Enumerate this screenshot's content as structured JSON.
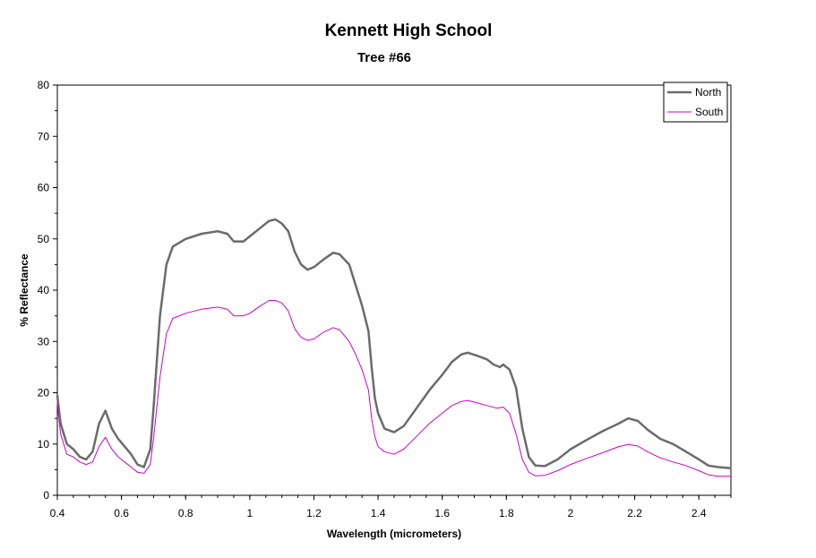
{
  "chart_data": {
    "type": "line",
    "title": "Kennett High School",
    "subtitle": "Tree #66",
    "xlabel": "Wavelength (micrometers)",
    "ylabel": "% Reflectance",
    "xlim": [
      0.4,
      2.5
    ],
    "ylim": [
      0,
      80
    ],
    "x_ticks": [
      0.4,
      0.6,
      0.8,
      1,
      1.2,
      1.4,
      1.6,
      1.8,
      2,
      2.2,
      2.4
    ],
    "x_tick_labels": [
      "0.4",
      "0.6",
      "0.8",
      "1",
      "1.2",
      "1.4",
      "1.6",
      "1.8",
      "2",
      "2.2",
      "2.4"
    ],
    "y_ticks": [
      0,
      10,
      20,
      30,
      40,
      50,
      60,
      70,
      80
    ],
    "y_tick_labels": [
      "0",
      "10",
      "20",
      "30",
      "40",
      "50",
      "60",
      "70",
      "80"
    ],
    "grid": false,
    "legend_position": "top-right",
    "series": [
      {
        "name": "North",
        "color": "#6b6b6b",
        "points": [
          [
            0.4,
            19.5
          ],
          [
            0.41,
            14.0
          ],
          [
            0.43,
            10.0
          ],
          [
            0.45,
            9.0
          ],
          [
            0.47,
            7.5
          ],
          [
            0.49,
            7.0
          ],
          [
            0.51,
            8.5
          ],
          [
            0.53,
            14.0
          ],
          [
            0.55,
            16.5
          ],
          [
            0.57,
            13.0
          ],
          [
            0.59,
            11.0
          ],
          [
            0.61,
            9.5
          ],
          [
            0.63,
            8.0
          ],
          [
            0.65,
            6.0
          ],
          [
            0.67,
            5.5
          ],
          [
            0.69,
            9.0
          ],
          [
            0.7,
            17.0
          ],
          [
            0.72,
            35.0
          ],
          [
            0.74,
            45.0
          ],
          [
            0.76,
            48.5
          ],
          [
            0.8,
            50.0
          ],
          [
            0.85,
            51.0
          ],
          [
            0.9,
            51.5
          ],
          [
            0.93,
            51.0
          ],
          [
            0.95,
            49.5
          ],
          [
            0.98,
            49.5
          ],
          [
            1.0,
            50.5
          ],
          [
            1.03,
            52.0
          ],
          [
            1.06,
            53.5
          ],
          [
            1.08,
            53.8
          ],
          [
            1.1,
            53.0
          ],
          [
            1.12,
            51.5
          ],
          [
            1.14,
            47.5
          ],
          [
            1.16,
            45.0
          ],
          [
            1.18,
            44.0
          ],
          [
            1.2,
            44.5
          ],
          [
            1.23,
            46.0
          ],
          [
            1.26,
            47.3
          ],
          [
            1.28,
            47.0
          ],
          [
            1.31,
            45.0
          ],
          [
            1.33,
            41.0
          ],
          [
            1.35,
            37.0
          ],
          [
            1.37,
            32.0
          ],
          [
            1.38,
            25.0
          ],
          [
            1.39,
            19.0
          ],
          [
            1.4,
            16.0
          ],
          [
            1.42,
            13.0
          ],
          [
            1.45,
            12.3
          ],
          [
            1.48,
            13.5
          ],
          [
            1.52,
            17.0
          ],
          [
            1.56,
            20.5
          ],
          [
            1.6,
            23.5
          ],
          [
            1.63,
            26.0
          ],
          [
            1.66,
            27.5
          ],
          [
            1.68,
            27.8
          ],
          [
            1.71,
            27.2
          ],
          [
            1.74,
            26.5
          ],
          [
            1.76,
            25.5
          ],
          [
            1.78,
            25.0
          ],
          [
            1.79,
            25.5
          ],
          [
            1.81,
            24.5
          ],
          [
            1.83,
            21.0
          ],
          [
            1.85,
            13.0
          ],
          [
            1.87,
            7.5
          ],
          [
            1.89,
            5.8
          ],
          [
            1.92,
            5.7
          ],
          [
            1.96,
            7.0
          ],
          [
            2.0,
            9.0
          ],
          [
            2.05,
            10.8
          ],
          [
            2.1,
            12.5
          ],
          [
            2.15,
            14.0
          ],
          [
            2.18,
            15.0
          ],
          [
            2.21,
            14.5
          ],
          [
            2.24,
            12.8
          ],
          [
            2.28,
            11.0
          ],
          [
            2.32,
            10.0
          ],
          [
            2.36,
            8.5
          ],
          [
            2.4,
            7.0
          ],
          [
            2.43,
            5.8
          ],
          [
            2.46,
            5.5
          ],
          [
            2.5,
            5.3
          ]
        ]
      },
      {
        "name": "South",
        "color": "#cc00cc",
        "points": [
          [
            0.4,
            18.0
          ],
          [
            0.41,
            12.0
          ],
          [
            0.43,
            8.0
          ],
          [
            0.45,
            7.5
          ],
          [
            0.47,
            6.5
          ],
          [
            0.49,
            6.0
          ],
          [
            0.51,
            6.5
          ],
          [
            0.53,
            9.5
          ],
          [
            0.55,
            11.3
          ],
          [
            0.57,
            9.0
          ],
          [
            0.59,
            7.5
          ],
          [
            0.61,
            6.5
          ],
          [
            0.63,
            5.5
          ],
          [
            0.65,
            4.5
          ],
          [
            0.67,
            4.3
          ],
          [
            0.69,
            6.0
          ],
          [
            0.7,
            11.0
          ],
          [
            0.72,
            23.0
          ],
          [
            0.74,
            31.5
          ],
          [
            0.76,
            34.5
          ],
          [
            0.8,
            35.5
          ],
          [
            0.85,
            36.3
          ],
          [
            0.9,
            36.7
          ],
          [
            0.93,
            36.3
          ],
          [
            0.95,
            35.0
          ],
          [
            0.98,
            35.0
          ],
          [
            1.0,
            35.5
          ],
          [
            1.03,
            36.8
          ],
          [
            1.06,
            38.0
          ],
          [
            1.08,
            38.0
          ],
          [
            1.1,
            37.5
          ],
          [
            1.12,
            36.0
          ],
          [
            1.14,
            32.5
          ],
          [
            1.16,
            30.8
          ],
          [
            1.18,
            30.2
          ],
          [
            1.2,
            30.5
          ],
          [
            1.23,
            31.8
          ],
          [
            1.26,
            32.7
          ],
          [
            1.28,
            32.3
          ],
          [
            1.31,
            30.0
          ],
          [
            1.33,
            27.5
          ],
          [
            1.35,
            24.5
          ],
          [
            1.37,
            20.5
          ],
          [
            1.38,
            15.0
          ],
          [
            1.39,
            11.5
          ],
          [
            1.4,
            9.5
          ],
          [
            1.42,
            8.5
          ],
          [
            1.45,
            8.0
          ],
          [
            1.48,
            9.0
          ],
          [
            1.52,
            11.5
          ],
          [
            1.56,
            14.0
          ],
          [
            1.6,
            16.0
          ],
          [
            1.63,
            17.5
          ],
          [
            1.66,
            18.3
          ],
          [
            1.68,
            18.5
          ],
          [
            1.71,
            18.0
          ],
          [
            1.74,
            17.5
          ],
          [
            1.77,
            17.0
          ],
          [
            1.79,
            17.2
          ],
          [
            1.81,
            16.0
          ],
          [
            1.83,
            12.0
          ],
          [
            1.85,
            7.0
          ],
          [
            1.87,
            4.5
          ],
          [
            1.89,
            3.8
          ],
          [
            1.92,
            3.9
          ],
          [
            1.96,
            4.8
          ],
          [
            2.0,
            6.0
          ],
          [
            2.05,
            7.2
          ],
          [
            2.1,
            8.3
          ],
          [
            2.15,
            9.5
          ],
          [
            2.18,
            9.9
          ],
          [
            2.21,
            9.6
          ],
          [
            2.24,
            8.5
          ],
          [
            2.28,
            7.3
          ],
          [
            2.32,
            6.5
          ],
          [
            2.36,
            5.8
          ],
          [
            2.4,
            4.8
          ],
          [
            2.43,
            4.0
          ],
          [
            2.46,
            3.7
          ],
          [
            2.5,
            3.7
          ]
        ]
      }
    ]
  }
}
